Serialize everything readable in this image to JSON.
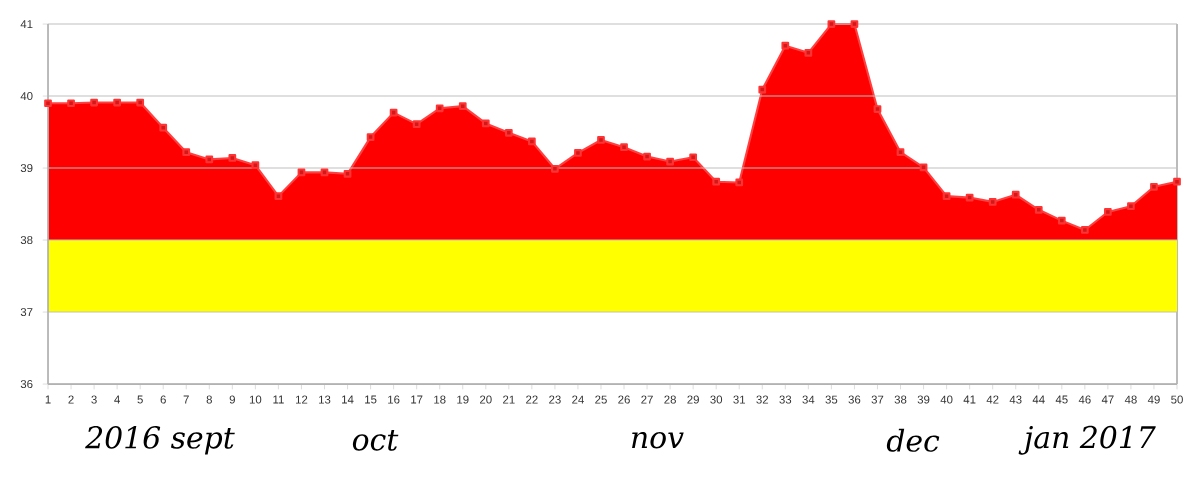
{
  "chart_data": {
    "type": "area",
    "categories": [
      "1",
      "2",
      "3",
      "4",
      "5",
      "6",
      "7",
      "8",
      "9",
      "10",
      "11",
      "12",
      "13",
      "14",
      "15",
      "16",
      "17",
      "18",
      "19",
      "20",
      "21",
      "22",
      "23",
      "24",
      "25",
      "26",
      "27",
      "28",
      "29",
      "30",
      "31",
      "32",
      "33",
      "34",
      "35",
      "36",
      "37",
      "38",
      "39",
      "40",
      "41",
      "42",
      "43",
      "44",
      "45",
      "46",
      "47",
      "48",
      "49",
      "50"
    ],
    "series": [
      {
        "color": "#ff0000",
        "values": [
          39.9,
          39.9,
          39.91,
          39.91,
          39.91,
          39.56,
          39.22,
          39.12,
          39.14,
          39.04,
          38.61,
          38.94,
          38.94,
          38.92,
          39.43,
          39.77,
          39.61,
          39.83,
          39.86,
          39.62,
          39.49,
          39.37,
          38.99,
          39.21,
          39.39,
          39.29,
          39.16,
          39.09,
          39.15,
          38.81,
          38.8,
          40.09,
          40.7,
          40.6,
          41,
          41,
          39.82,
          39.22,
          39.01,
          38.61,
          38.59,
          38.53,
          38.63,
          38.42,
          38.27,
          38.14,
          38.39,
          38.47,
          38.74,
          38.81
        ]
      }
    ],
    "bands": [
      {
        "axis": "y",
        "from": 37,
        "to": 38,
        "color": "#ffff00"
      }
    ],
    "ylim": [
      36,
      41
    ],
    "yticks": [
      36,
      37,
      38,
      39,
      40,
      41
    ],
    "grid": "y",
    "marker": "square",
    "annotations": [
      "2016 sept",
      "oct",
      "nov",
      "dec",
      "jan 2017"
    ]
  }
}
